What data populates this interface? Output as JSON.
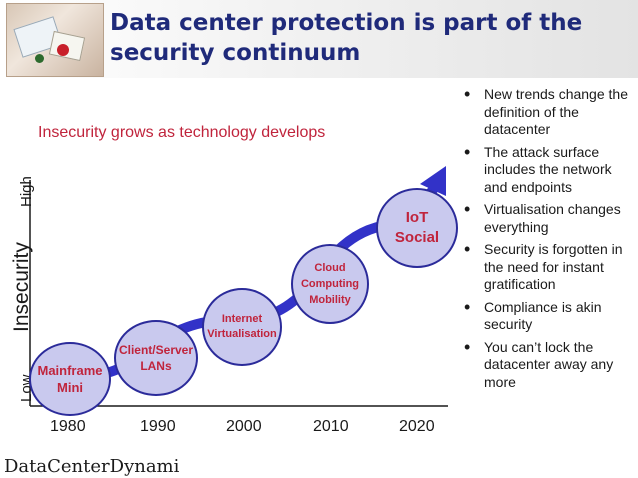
{
  "title": "Data center protection is part of the security continuum",
  "diagram": {
    "subtitle": "Insecurity grows as technology develops",
    "y_axis": {
      "label": "Insecurity",
      "high": "High",
      "low": "Low"
    },
    "x_axis": {
      "ticks": [
        "1980",
        "1990",
        "2000",
        "2010",
        "2020"
      ]
    },
    "milestones": [
      {
        "lines": [
          "Mainframe",
          "Mini"
        ]
      },
      {
        "lines": [
          "Client/Server",
          "LANs"
        ]
      },
      {
        "lines": [
          "Internet",
          "Virtualisation"
        ]
      },
      {
        "lines": [
          "Cloud",
          "Computing",
          "Mobility"
        ]
      },
      {
        "lines": [
          "IoT",
          "Social"
        ]
      }
    ],
    "colors": {
      "milestone_fill": "#c9c9ee",
      "milestone_border": "#2b2b9a",
      "arrow": "#3232c8",
      "milestone_text": "#c0243c",
      "subtitle": "#c0243c",
      "title": "#1f2a7a"
    }
  },
  "bullets": [
    "New trends change the definition of the datacenter",
    "The attack surface includes the network and endpoints",
    "Virtualisation changes everything",
    "Security is forgotten in the need for instant gratification",
    "Compliance is akin security",
    "You can’t lock the datacenter away any more"
  ],
  "footer": {
    "text": "DataCenterDynami"
  }
}
